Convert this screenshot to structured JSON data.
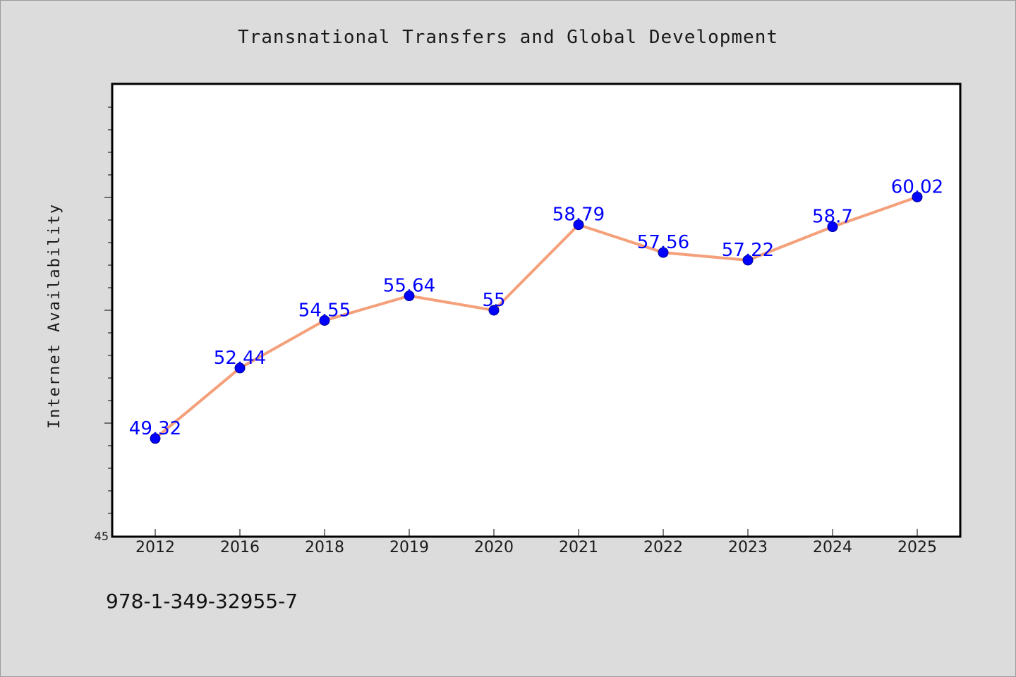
{
  "chart_data": {
    "type": "line",
    "title": "Transnational Transfers and Global Development",
    "xlabel": "",
    "ylabel": "Internet Availability",
    "categories": [
      "2012",
      "2016",
      "2018",
      "2019",
      "2020",
      "2021",
      "2022",
      "2023",
      "2024",
      "2025"
    ],
    "series": [
      {
        "values": [
          49.32,
          52.44,
          54.55,
          55.64,
          55,
          58.79,
          57.56,
          57.22,
          58.7,
          60.02
        ],
        "labels": [
          "49.32",
          "52.44",
          "54.55",
          "55.64",
          "55",
          "58.79",
          "57.56",
          "57.22",
          "58.7",
          "60.02"
        ]
      }
    ],
    "ylim": [
      45,
      65
    ],
    "ytick_labels": [
      "45"
    ],
    "grid": false,
    "line_color": "#f4a07a",
    "marker_color": "#0000ff",
    "label_color": "#0000ff"
  },
  "footer": {
    "isbn": "978-1-349-32955-7"
  }
}
